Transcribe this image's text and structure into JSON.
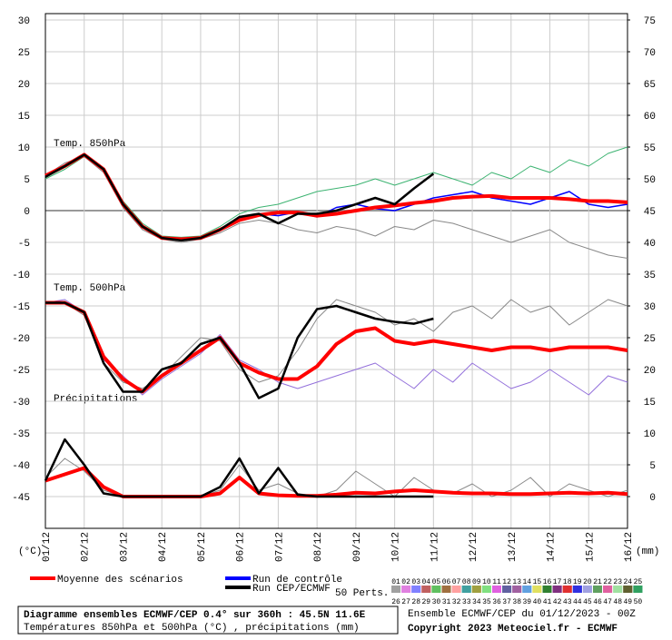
{
  "chart_data": {
    "type": "line",
    "panel_labels": [
      "Temp. 850hPa",
      "Temp. 500hPa",
      "Précipitations"
    ],
    "ylabel": "(°C)",
    "y2label": "(mm)",
    "xlim": [
      0,
      360
    ],
    "xticks": [
      {
        "value": 0,
        "label": "01/12"
      },
      {
        "value": 24,
        "label": "02/12"
      },
      {
        "value": 48,
        "label": "03/12"
      },
      {
        "value": 72,
        "label": "04/12"
      },
      {
        "value": 96,
        "label": "05/12"
      },
      {
        "value": 120,
        "label": "06/12"
      },
      {
        "value": 144,
        "label": "07/12"
      },
      {
        "value": 168,
        "label": "08/12"
      },
      {
        "value": 192,
        "label": "09/12"
      },
      {
        "value": 216,
        "label": "10/12"
      },
      {
        "value": 240,
        "label": "11/12"
      },
      {
        "value": 264,
        "label": "12/12"
      },
      {
        "value": 288,
        "label": "13/12"
      },
      {
        "value": 312,
        "label": "14/12"
      },
      {
        "value": 336,
        "label": "15/12"
      },
      {
        "value": 360,
        "label": "16/12"
      }
    ],
    "ylim": [
      -50,
      31
    ],
    "yticks": [
      30,
      25,
      20,
      15,
      10,
      5,
      0,
      -5,
      -10,
      -15,
      -20,
      -25,
      -30,
      -35,
      -40,
      -45
    ],
    "y2lim": [
      -5,
      76
    ],
    "y2ticks": [
      75,
      70,
      65,
      60,
      55,
      50,
      45,
      40,
      35,
      30,
      25,
      20,
      15,
      10,
      5,
      0
    ],
    "grid": true,
    "x": [
      0,
      12,
      24,
      36,
      48,
      60,
      72,
      84,
      96,
      108,
      120,
      132,
      144,
      156,
      168,
      180,
      192,
      204,
      216,
      228,
      240,
      252,
      264,
      276,
      288,
      300,
      312,
      324,
      336,
      348,
      360
    ],
    "series": [
      {
        "color": "#0000ff",
        "width": 1.5,
        "values": [
          5.5,
          7,
          8.8,
          6.5,
          1,
          -2.5,
          -4.3,
          -4.6,
          -4.2,
          -3,
          -1.2,
          -0.5,
          -0.8,
          -0.2,
          -1,
          0.5,
          1,
          0.3,
          0,
          1,
          2,
          2.5,
          3,
          2,
          1.5,
          1,
          2,
          3,
          1,
          0.5,
          1
        ]
      },
      {
        "color": "#888888",
        "width": 1,
        "values": [
          5.5,
          7.5,
          8.5,
          6,
          0.5,
          -3,
          -4.5,
          -5,
          -4.5,
          -3.5,
          -2,
          -1.5,
          -2,
          -3,
          -3.5,
          -2.5,
          -3,
          -4,
          -2.5,
          -3,
          -1.5,
          -2,
          -3,
          -4,
          -5,
          -4,
          -3,
          -5,
          -6,
          -7,
          -7.5
        ]
      },
      {
        "color": "#3cb371",
        "width": 1,
        "values": [
          5,
          6.5,
          8.5,
          6.5,
          1.5,
          -2,
          -4,
          -4.2,
          -4,
          -2.5,
          -0.5,
          0.5,
          1,
          2,
          3,
          3.5,
          4,
          5,
          4,
          5,
          6,
          5,
          4,
          6,
          5,
          7,
          6,
          8,
          7,
          9,
          10
        ]
      },
      {
        "color": "#ff0000",
        "width": 4,
        "values": [
          5.5,
          7,
          8.8,
          6.5,
          1,
          -2.5,
          -4.3,
          -4.5,
          -4.3,
          -3,
          -1.5,
          -0.7,
          -0.3,
          -0.3,
          -0.8,
          -0.5,
          0,
          0.5,
          0.8,
          1.2,
          1.5,
          2,
          2.2,
          2.3,
          2,
          2,
          2,
          1.8,
          1.5,
          1.5,
          1.3
        ]
      },
      {
        "color": "#000000",
        "width": 2.5,
        "values": [
          5.3,
          7,
          8.8,
          6.5,
          1,
          -2.5,
          -4.3,
          -4.7,
          -4.3,
          -3,
          -1,
          -0.5,
          -2,
          -0.5,
          -0.5,
          0,
          1,
          2,
          1,
          3.5,
          5.8,
          null,
          null,
          null,
          null,
          null,
          null,
          null,
          null,
          null,
          null
        ]
      },
      {
        "color": "#888888",
        "width": 1,
        "values": [
          -14.5,
          -14.5,
          -16.5,
          -24,
          -27,
          -28,
          -26,
          -23,
          -20,
          -20.5,
          -25,
          -27,
          -26,
          -22,
          -17,
          -14,
          -15,
          -16,
          -18,
          -17,
          -19,
          -16,
          -15,
          -17,
          -14,
          -16,
          -15,
          -18,
          -16,
          -14,
          -15
        ]
      },
      {
        "color": "#9370db",
        "width": 1,
        "values": [
          -14.5,
          -14,
          -16,
          -23.5,
          -26,
          -29,
          -26.5,
          -24.5,
          -22.5,
          -19.5,
          -23.5,
          -25,
          -27,
          -28,
          -27,
          -26,
          -25,
          -24,
          -26,
          -28,
          -25,
          -27,
          -24,
          -26,
          -28,
          -27,
          -25,
          -27,
          -29,
          -26,
          -27
        ]
      },
      {
        "color": "#ff0000",
        "width": 4,
        "values": [
          -14.5,
          -14.5,
          -16,
          -23,
          -26.5,
          -28.5,
          -26,
          -24,
          -22,
          -20,
          -24,
          -25.5,
          -26.5,
          -26.5,
          -24.5,
          -21,
          -19,
          -18.5,
          -20.5,
          -21,
          -20.5,
          -21,
          -21.5,
          -22,
          -21.5,
          -21.5,
          -22,
          -21.5,
          -21.5,
          -21.5,
          -22
        ]
      },
      {
        "color": "#000000",
        "width": 2.5,
        "values": [
          -14.5,
          -14.5,
          -16,
          -24,
          -28.5,
          -28.5,
          -25,
          -24,
          -21,
          -20,
          -24,
          -29.5,
          -28,
          -20,
          -15.5,
          -15,
          -16,
          -17,
          -17.5,
          -17.8,
          -17,
          null,
          null,
          null,
          null,
          null,
          null,
          null,
          null,
          null,
          null
        ]
      },
      {
        "color": "#888888",
        "width": 1,
        "axis": "y2",
        "values": [
          3,
          6,
          4,
          1,
          0,
          0,
          0,
          0,
          0,
          1,
          5,
          1,
          2,
          0.5,
          0,
          1,
          4,
          2,
          0,
          3,
          1,
          0.5,
          2,
          0,
          1,
          3,
          0,
          2,
          1,
          0,
          1
        ]
      },
      {
        "color": "#ff0000",
        "width": 4,
        "axis": "y2",
        "values": [
          2.5,
          3.5,
          4.5,
          1.5,
          0,
          0,
          0,
          0,
          0,
          0.5,
          3,
          0.5,
          0.2,
          0.1,
          0.1,
          0.3,
          0.6,
          0.5,
          0.8,
          1,
          0.8,
          0.6,
          0.5,
          0.5,
          0.4,
          0.4,
          0.5,
          0.6,
          0.5,
          0.6,
          0.4
        ]
      },
      {
        "color": "#000000",
        "width": 2.5,
        "axis": "y2",
        "values": [
          2.5,
          9,
          5,
          0.5,
          0,
          0,
          0,
          0,
          0,
          1.5,
          6,
          0.5,
          4.5,
          0.3,
          0,
          0,
          0,
          0,
          0,
          0,
          0,
          null,
          null,
          null,
          null,
          null,
          null,
          null,
          null,
          null,
          null
        ]
      }
    ],
    "legend": [
      {
        "name": "Moyenne des scénarios",
        "color": "#ff0000"
      },
      {
        "name": "Run de contrôle",
        "color": "#0000ff"
      },
      {
        "name": "Run CEP/ECMWF",
        "color": "#000000"
      }
    ],
    "perts_label": "50 Perts.",
    "perts": [
      "01",
      "02",
      "03",
      "04",
      "05",
      "06",
      "07",
      "08",
      "09",
      "10",
      "11",
      "12",
      "13",
      "14",
      "15",
      "16",
      "17",
      "18",
      "19",
      "20",
      "21",
      "22",
      "23",
      "24",
      "25",
      "26",
      "27",
      "28",
      "29",
      "30",
      "31",
      "32",
      "33",
      "34",
      "35",
      "36",
      "37",
      "38",
      "39",
      "40",
      "41",
      "42",
      "43",
      "44",
      "45",
      "46",
      "47",
      "48",
      "49",
      "50"
    ],
    "pert_colors": [
      "#c0c0c0",
      "#e0a0ff",
      "#a0a0ff",
      "#ff8080",
      "#80ff80",
      "#c08040",
      "#ffc0c0",
      "#40c0c0",
      "#c0c040",
      "#a0ffa0",
      "#ff80ff",
      "#8080c0",
      "#c080c0",
      "#80c0ff",
      "#ffff80",
      "#40a040",
      "#a040a0",
      "#ff4040",
      "#4040ff",
      "#c0c0ff",
      "#80c080",
      "#ff80c0",
      "#c0ffc0",
      "#808040",
      "#40c080",
      "#a0a0a0",
      "#e080e0",
      "#8080ff",
      "#c06060",
      "#60c060",
      "#a07040",
      "#ffa0a0",
      "#40a0a0",
      "#a0a040",
      "#80e080",
      "#e060e0",
      "#6060a0",
      "#a060a0",
      "#60a0e0",
      "#e0e060",
      "#308030",
      "#803080",
      "#e03030",
      "#3030e0",
      "#a0a0e0",
      "#60a060",
      "#e060a0",
      "#a0e0a0",
      "#606030",
      "#30a060"
    ],
    "title": "Diagramme ensembles ECMWF/CEP 0.4° sur 360h : 45.5N 11.6E",
    "subtitle": "Températures 850hPa et 500hPa (°C) , précipitations (mm)",
    "run_info": "Ensemble ECMWF/CEP du 01/12/2023 - 00Z",
    "copyright": "Copyright 2023 Meteociel.fr - ECMWF"
  }
}
